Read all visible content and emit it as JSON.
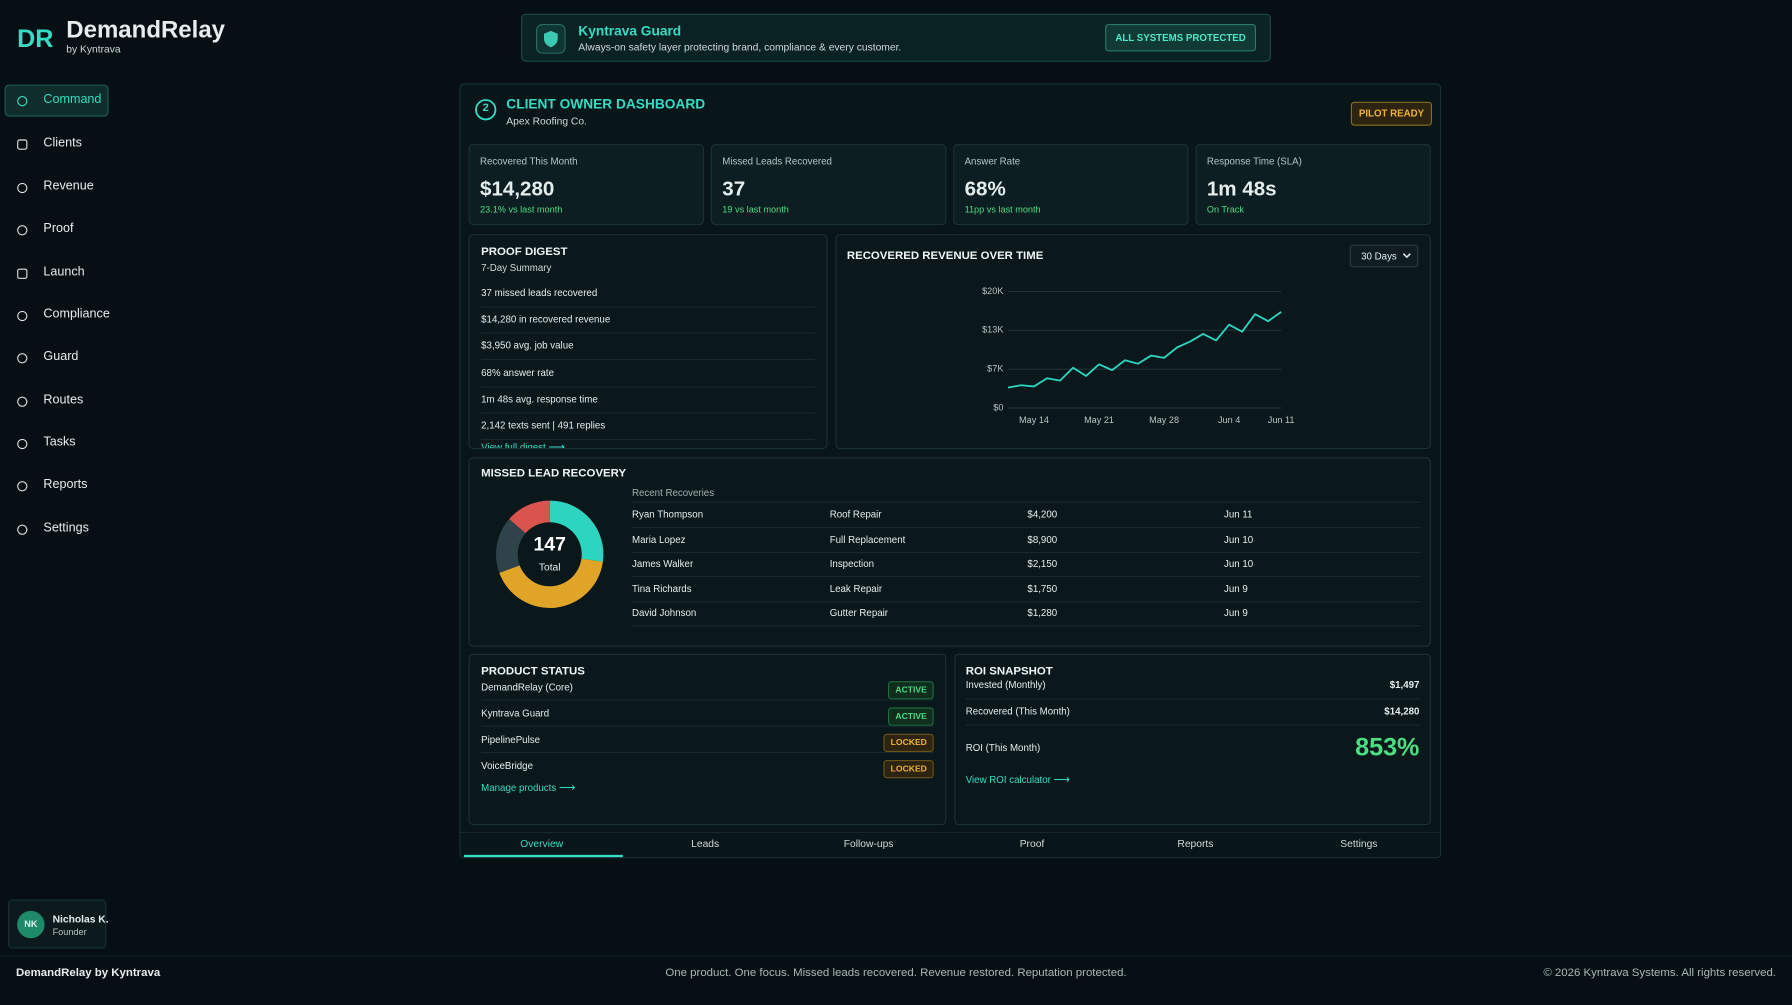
{
  "brand": {
    "logo": "DR",
    "name": "DemandRelay",
    "by": "by Kyntrava"
  },
  "nav": [
    "Command",
    "Clients",
    "Revenue",
    "Proof",
    "Launch",
    "Compliance",
    "Guard",
    "Routes",
    "Tasks",
    "Reports",
    "Settings"
  ],
  "guard": {
    "title": "Kyntrava Guard",
    "text": "Always-on safety layer protecting brand, compliance & every customer.",
    "status": "ALL SYSTEMS PROTECTED"
  },
  "dashboard": {
    "step": "2",
    "title": "CLIENT OWNER DASHBOARD",
    "client": "Apex Roofing Co.",
    "badge": "PILOT READY"
  },
  "kpis": [
    {
      "label": "Recovered This Month",
      "value": "$14,280",
      "delta": "23.1% vs last month"
    },
    {
      "label": "Missed Leads Recovered",
      "value": "37",
      "delta": "19 vs last month"
    },
    {
      "label": "Answer Rate",
      "value": "68%",
      "delta": "11pp vs last month"
    },
    {
      "label": "Response Time (SLA)",
      "value": "1m 48s",
      "delta": "On Track"
    }
  ],
  "proof_digest": {
    "title": "PROOF DIGEST",
    "subtitle": "7-Day Summary",
    "items": [
      "37 missed leads recovered",
      "$14,280 in recovered revenue",
      "$3,950 avg. job value",
      "68% answer rate",
      "1m 48s avg. response time",
      "2,142 texts sent | 491 replies"
    ],
    "link": "View full digest"
  },
  "chart_data": [
    {
      "type": "line",
      "title": "RECOVERED REVENUE OVER TIME",
      "range_select": "30 Days",
      "categories": [
        null,
        null,
        "May 14",
        null,
        null,
        null,
        null,
        "May 21",
        null,
        null,
        null,
        null,
        "May 28",
        null,
        null,
        null,
        null,
        "Jun 4",
        null,
        null,
        null,
        "Jun 11"
      ],
      "series": [
        {
          "color": "#2dd4bf",
          "values": [
            3500,
            3900,
            3700,
            5100,
            4700,
            6900,
            5500,
            7500,
            6500,
            8200,
            7600,
            9000,
            8600,
            10400,
            11400,
            12700,
            11600,
            14300,
            13100,
            16100,
            14900,
            16500
          ]
        }
      ],
      "ylim": [
        0,
        20000
      ],
      "yticks": [
        {
          "value": 0,
          "label": "$0"
        },
        {
          "value": 6667,
          "label": "$7K"
        },
        {
          "value": 13333,
          "label": "$13K"
        },
        {
          "value": 20000,
          "label": "$20K"
        }
      ],
      "grid": true
    },
    {
      "type": "donut",
      "title": "MISSED LEAD RECOVERY",
      "total": 147,
      "total_label": "Total",
      "values": [
        40,
        62,
        25,
        20
      ],
      "colors": [
        "#2dd4bf",
        "#e0a528",
        "#2e434a",
        "#d9534f"
      ]
    }
  ],
  "recent_recoveries": {
    "title": "Recent Recoveries",
    "rows": [
      [
        "Ryan Thompson",
        "Roof Repair",
        "$4,200",
        "Jun 11"
      ],
      [
        "Maria Lopez",
        "Full Replacement",
        "$8,900",
        "Jun 10"
      ],
      [
        "James Walker",
        "Inspection",
        "$2,150",
        "Jun 10"
      ],
      [
        "Tina Richards",
        "Leak Repair",
        "$1,750",
        "Jun 9"
      ],
      [
        "David Johnson",
        "Gutter Repair",
        "$1,280",
        "Jun 9"
      ]
    ]
  },
  "product_status": {
    "title": "PRODUCT STATUS",
    "items": [
      {
        "name": "DemandRelay (Core)",
        "status": "ACTIVE"
      },
      {
        "name": "Kyntrava Guard",
        "status": "ACTIVE"
      },
      {
        "name": "PipelinePulse",
        "status": "LOCKED"
      },
      {
        "name": "VoiceBridge",
        "status": "LOCKED"
      }
    ],
    "link": "Manage products"
  },
  "roi": {
    "title": "ROI SNAPSHOT",
    "rows": [
      [
        "Invested (Monthly)",
        "$1,497"
      ],
      [
        "Recovered (This Month)",
        "$14,280"
      ]
    ],
    "roi_label": "ROI (This Month)",
    "roi_value": "853%",
    "link": "View ROI calculator"
  },
  "tabs": [
    "Overview",
    "Leads",
    "Follow-ups",
    "Proof",
    "Reports",
    "Settings"
  ],
  "user": {
    "initials": "NK",
    "name": "Nicholas K.",
    "role": "Founder"
  },
  "footer": {
    "left": "DemandRelay by Kyntrava",
    "center": "One product. One focus. Missed leads recovered. Revenue restored. Reputation protected.",
    "right": "© 2026 Kyntrava Systems. All rights reserved."
  }
}
